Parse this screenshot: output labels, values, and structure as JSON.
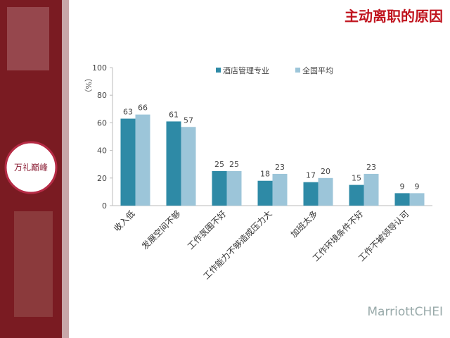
{
  "slide": {
    "logo_text": "万礼巅峰",
    "watermark": "MarriottCHEI"
  },
  "chart_data": {
    "type": "bar",
    "title": "主动离职的原因",
    "y_label": "（%）",
    "categories": [
      "收入低",
      "发展空间不够",
      "工作氛围不好",
      "工作能力不够造成压力大",
      "加班太多",
      "工作环境条件不好",
      "工作不被领导认可"
    ],
    "series": [
      {
        "name": "酒店管理专业",
        "color": "#2e8aa6",
        "values": [
          63,
          61,
          25,
          18,
          17,
          15,
          9
        ]
      },
      {
        "name": "全国平均",
        "color": "#9cc5d9",
        "values": [
          66,
          57,
          25,
          23,
          20,
          23,
          9
        ]
      }
    ],
    "ylim": [
      0,
      100
    ],
    "yticks": [
      0,
      20,
      40,
      60,
      80,
      100
    ],
    "legend": "top"
  }
}
